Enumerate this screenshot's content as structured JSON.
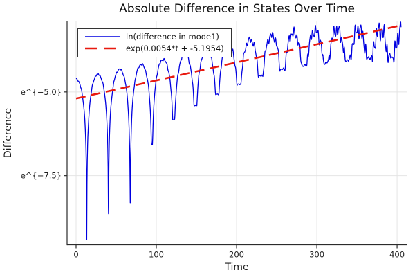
{
  "chart_data": {
    "type": "line",
    "title": "Absolute Difference in States Over Time",
    "xlabel": "Time",
    "ylabel": "Difference",
    "y_scale": "log-e",
    "grid": true,
    "legend_position": "top-left",
    "x_ticks": [
      0,
      100,
      200,
      300,
      400
    ],
    "y_ticks": [
      {
        "label": "e^{−5.0}",
        "ln_value": -5.0
      },
      {
        "label": "e^{−7.5}",
        "ln_value": -7.5
      }
    ],
    "x_range": [
      -11.2,
      412
    ],
    "y_ln_range": [
      -9.566,
      -2.872
    ],
    "series": [
      {
        "name": "ln(difference in mode1)",
        "color": "#0000e0",
        "line_style": "solid",
        "line_width": 1.3,
        "model": {
          "kind": "abs-sine-on-log-scale",
          "trend_slope": 0.0054,
          "trend_intercept": -5.1954,
          "peak_offset": 0.58,
          "peak_decay_start": 225,
          "peak_decay_span": 180,
          "peak_decay_amount": 0.75,
          "peak_decay_exponent": 1.6,
          "half_period": 27.1,
          "first_zero_t": 13.3,
          "dip_depths": [
            4.86,
            4.24,
            4.06,
            2.47,
            1.87,
            1.59,
            1.4,
            1.25,
            1.15,
            1.05,
            1.0,
            0.95,
            0.9,
            0.85,
            0.8
          ],
          "noise_base": 0.03,
          "noise_growth": 0.38,
          "noise_exponent": 2.2,
          "noise_freqs": [
            1.9,
            0.9,
            3.3
          ],
          "noise_phases": [
            0.5,
            2.1,
            4.2
          ],
          "noise_weights": [
            0.5,
            0.3,
            0.2
          ],
          "t_start": 0,
          "t_end": 405,
          "t_step": 0.35
        }
      },
      {
        "name": "exp(0.0054*t + -5.1954)",
        "color": "#e8190f",
        "line_style": "dashed",
        "line_width": 2.6,
        "dash_pattern": "14 8",
        "model": {
          "kind": "log-linear-trend",
          "slope": 0.0054,
          "intercept": -5.1954,
          "t_start": 0,
          "t_end": 407
        }
      }
    ]
  }
}
